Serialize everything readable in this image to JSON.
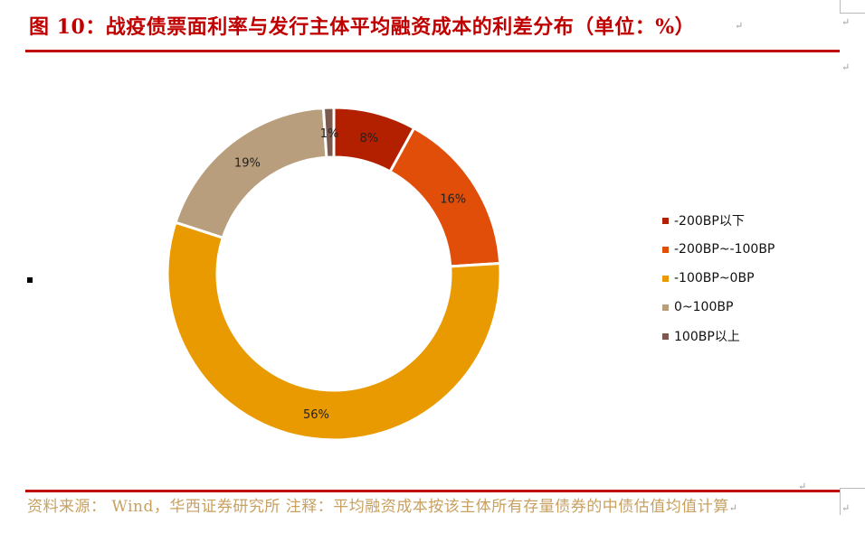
{
  "title": "图 10：战疫债票面利率与发行主体平均融资成本的利差分布（单位：%）",
  "source_text": "资料来源： Wind，华西证券研究所 注释：平均融资成本按该主体所有存量债券的中债估值均值计算",
  "chart_data": {
    "type": "pie",
    "variant": "donut",
    "categories": [
      "-200BP以下",
      "-200BP~-100BP",
      "-100BP~0BP",
      "0~100BP",
      "100BP以上"
    ],
    "values": [
      8,
      16,
      56,
      19,
      1
    ],
    "data_labels": [
      "8%",
      "16%",
      "56%",
      "19%",
      "1%"
    ],
    "colors": [
      "#b22000",
      "#e04e0a",
      "#e99a00",
      "#b89e7c",
      "#7a5a4e"
    ],
    "legend_position": "right",
    "start_angle_deg": 0,
    "direction": "clockwise"
  }
}
